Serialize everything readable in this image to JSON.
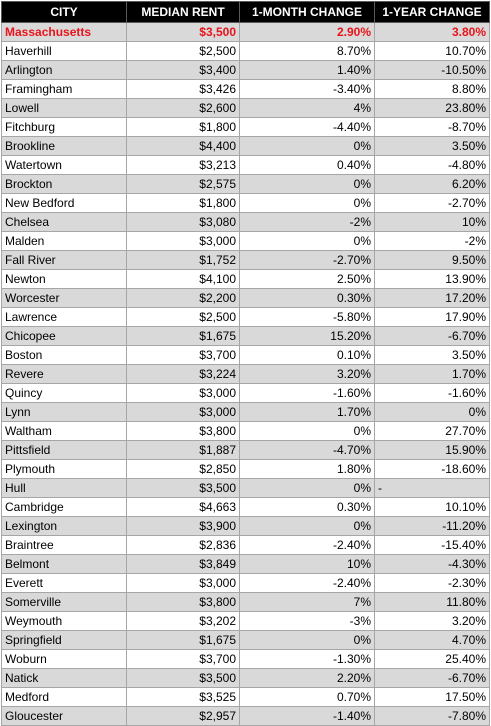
{
  "columns": [
    "CITY",
    "MEDIAN RENT",
    "1-MONTH CHANGE",
    "1-YEAR CHANGE"
  ],
  "state_row": {
    "city": "Massachusetts",
    "rent": "$3,500",
    "month": "2.90%",
    "year": "3.80%"
  },
  "rows": [
    {
      "city": "Haverhill",
      "rent": "$2,500",
      "month": "8.70%",
      "year": "10.70%"
    },
    {
      "city": "Arlington",
      "rent": "$3,400",
      "month": "1.40%",
      "year": "-10.50%"
    },
    {
      "city": "Framingham",
      "rent": "$3,426",
      "month": "-3.40%",
      "year": "8.80%"
    },
    {
      "city": "Lowell",
      "rent": "$2,600",
      "month": "4%",
      "year": "23.80%"
    },
    {
      "city": "Fitchburg",
      "rent": "$1,800",
      "month": "-4.40%",
      "year": "-8.70%"
    },
    {
      "city": "Brookline",
      "rent": "$4,400",
      "month": "0%",
      "year": "3.50%"
    },
    {
      "city": "Watertown",
      "rent": "$3,213",
      "month": "0.40%",
      "year": "-4.80%"
    },
    {
      "city": "Brockton",
      "rent": "$2,575",
      "month": "0%",
      "year": "6.20%"
    },
    {
      "city": "New Bedford",
      "rent": "$1,800",
      "month": "0%",
      "year": "-2.70%"
    },
    {
      "city": "Chelsea",
      "rent": "$3,080",
      "month": "-2%",
      "year": "10%"
    },
    {
      "city": "Malden",
      "rent": "$3,000",
      "month": "0%",
      "year": "-2%"
    },
    {
      "city": "Fall River",
      "rent": "$1,752",
      "month": "-2.70%",
      "year": "9.50%"
    },
    {
      "city": "Newton",
      "rent": "$4,100",
      "month": "2.50%",
      "year": "13.90%"
    },
    {
      "city": "Worcester",
      "rent": "$2,200",
      "month": "0.30%",
      "year": "17.20%"
    },
    {
      "city": "Lawrence",
      "rent": "$2,500",
      "month": "-5.80%",
      "year": "17.90%"
    },
    {
      "city": "Chicopee",
      "rent": "$1,675",
      "month": "15.20%",
      "year": "-6.70%"
    },
    {
      "city": "Boston",
      "rent": "$3,700",
      "month": "0.10%",
      "year": "3.50%"
    },
    {
      "city": "Revere",
      "rent": "$3,224",
      "month": "3.20%",
      "year": "1.70%"
    },
    {
      "city": "Quincy",
      "rent": "$3,000",
      "month": "-1.60%",
      "year": "-1.60%"
    },
    {
      "city": "Lynn",
      "rent": "$3,000",
      "month": "1.70%",
      "year": "0%"
    },
    {
      "city": "Waltham",
      "rent": "$3,800",
      "month": "0%",
      "year": "27.70%"
    },
    {
      "city": "Pittsfield",
      "rent": "$1,887",
      "month": "-4.70%",
      "year": "15.90%"
    },
    {
      "city": "Plymouth",
      "rent": "$2,850",
      "month": "1.80%",
      "year": "-18.60%"
    },
    {
      "city": "Hull",
      "rent": "$3,500",
      "month": "0%",
      "month_trail": "-",
      "year": ""
    },
    {
      "city": "Cambridge",
      "rent": "$4,663",
      "month": "0.30%",
      "year": "10.10%"
    },
    {
      "city": "Lexington",
      "rent": "$3,900",
      "month": "0%",
      "year": "-11.20%"
    },
    {
      "city": "Braintree",
      "rent": "$2,836",
      "month": "-2.40%",
      "year": "-15.40%"
    },
    {
      "city": "Belmont",
      "rent": "$3,849",
      "month": "10%",
      "year": "-4.30%"
    },
    {
      "city": "Everett",
      "rent": "$3,000",
      "month": "-2.40%",
      "year": "-2.30%"
    },
    {
      "city": "Somerville",
      "rent": "$3,800",
      "month": "7%",
      "year": "11.80%"
    },
    {
      "city": "Weymouth",
      "rent": "$3,202",
      "month": "-3%",
      "year": "3.20%"
    },
    {
      "city": "Springfield",
      "rent": "$1,675",
      "month": "0%",
      "year": "4.70%"
    },
    {
      "city": "Woburn",
      "rent": "$3,700",
      "month": "-1.30%",
      "year": "25.40%"
    },
    {
      "city": "Natick",
      "rent": "$3,500",
      "month": "2.20%",
      "year": "-6.70%"
    },
    {
      "city": "Medford",
      "rent": "$3,525",
      "month": "0.70%",
      "year": "17.50%"
    },
    {
      "city": "Gloucester",
      "rent": "$2,957",
      "month": "-1.40%",
      "year": "-7.80%"
    }
  ],
  "colors": {
    "header_bg": "#000000",
    "header_text": "#ffffff",
    "state_text": "#e8141b",
    "shade": "#d9d9d9"
  }
}
